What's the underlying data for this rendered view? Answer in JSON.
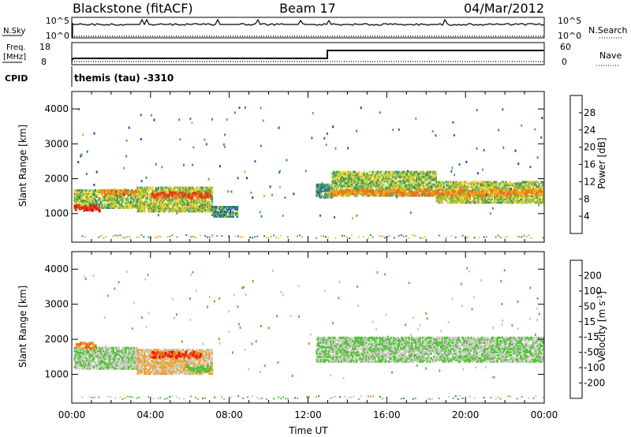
{
  "header": {
    "station": "Blackstone (fitACF)",
    "beam": "Beam 17",
    "date": "04/Mar/2012"
  },
  "noise_panel": {
    "left_label": "N.Sky",
    "right_label": "N.Search",
    "left_ticks": [
      "10^5",
      "10^0"
    ],
    "right_ticks": [
      "10^5",
      "10^0"
    ]
  },
  "freq_panel": {
    "left_label_1": "Freq.",
    "left_label_2": "[MHz]",
    "right_label": "Nave",
    "left_ticks": [
      "18",
      "8"
    ],
    "right_ticks": [
      "60",
      "0"
    ]
  },
  "cpid": {
    "label": "CPID",
    "text": "themis (tau) -3310"
  },
  "colorbars": {
    "power": {
      "title": "Power [dB]",
      "tick_labels": [
        "28",
        "24",
        "20",
        "16",
        "12",
        "8",
        "4"
      ],
      "colors": [
        "#0000ff",
        "#1a3fb0",
        "#2a6a9a",
        "#3e8e6e",
        "#5fae4a",
        "#a8c83a",
        "#f2d02a",
        "#f4a31c",
        "#f0701a",
        "#e83a18",
        "#e01010"
      ]
    },
    "velocity": {
      "title_main": "Velocity [m s",
      "title_sup": "-1",
      "title_end": "]",
      "tick_labels": [
        "200",
        "100",
        "50",
        "15",
        "-15",
        "-50",
        "-100",
        "-200"
      ],
      "colors": [
        "#1a2ad8",
        "#2c5ca8",
        "#2e8a4c",
        "#54c23a",
        "#c8c8c0",
        "#f2a01c",
        "#ee6a18",
        "#e82010"
      ]
    }
  },
  "chart_data": [
    {
      "type": "heatmap",
      "title": "Power",
      "ylabel": "Slant Range [km]",
      "xlim": [
        0,
        24
      ],
      "ylim": [
        180,
        4500
      ],
      "y_ticks": [
        1000,
        2000,
        3000,
        4000
      ],
      "clim": [
        0,
        30
      ],
      "bands": [
        {
          "t0": 0.1,
          "t1": 3.3,
          "r_center": 1450,
          "width": 500,
          "value": 14
        },
        {
          "t0": 3.3,
          "t1": 7.1,
          "r_center": 1450,
          "width": 700,
          "value": 15
        },
        {
          "t0": 7.1,
          "t1": 8.4,
          "r_center": 1100,
          "width": 300,
          "value": 10
        },
        {
          "t0": 12.4,
          "t1": 13.2,
          "r_center": 1700,
          "width": 400,
          "value": 10
        },
        {
          "t0": 13.2,
          "t1": 18.5,
          "r_center": 1900,
          "width": 700,
          "value": 14
        },
        {
          "t0": 18.5,
          "t1": 24.0,
          "r_center": 1650,
          "width": 600,
          "value": 15
        }
      ],
      "ridges": [
        {
          "t0": 0.1,
          "t1": 1.4,
          "r_center": 1200,
          "value": 27
        },
        {
          "t0": 1.4,
          "t1": 3.2,
          "r_center": 1650,
          "value": 22
        },
        {
          "t0": 4.0,
          "t1": 7.0,
          "r_center": 1560,
          "value": 25
        },
        {
          "t0": 13.0,
          "t1": 24.0,
          "r_center": 1640,
          "value": 22
        }
      ]
    },
    {
      "type": "heatmap",
      "title": "Velocity",
      "ylabel": "Slant Range [km]",
      "xlabel": "Time UT",
      "xlim": [
        0,
        24
      ],
      "ylim": [
        180,
        4500
      ],
      "y_ticks": [
        1000,
        2000,
        3000,
        4000
      ],
      "x_ticks": [
        "00:00",
        "04:00",
        "08:00",
        "12:00",
        "16:00",
        "20:00",
        "00:00"
      ],
      "clim": [
        -200,
        200
      ],
      "bands": [
        {
          "t0": 0.1,
          "t1": 3.3,
          "r_center": 1500,
          "width": 600,
          "value": -5
        },
        {
          "t0": 3.3,
          "t1": 7.1,
          "r_center": 1400,
          "width": 700,
          "value": -50
        },
        {
          "t0": 12.4,
          "t1": 24.0,
          "r_center": 1750,
          "width": 700,
          "value": 0
        }
      ],
      "ridges": [
        {
          "t0": 0.2,
          "t1": 1.2,
          "r_center": 1850,
          "value": -100
        },
        {
          "t0": 4.0,
          "t1": 6.5,
          "r_center": 1600,
          "value": -150
        },
        {
          "t0": 5.8,
          "t1": 7.0,
          "r_center": 1200,
          "value": 30
        }
      ]
    }
  ]
}
